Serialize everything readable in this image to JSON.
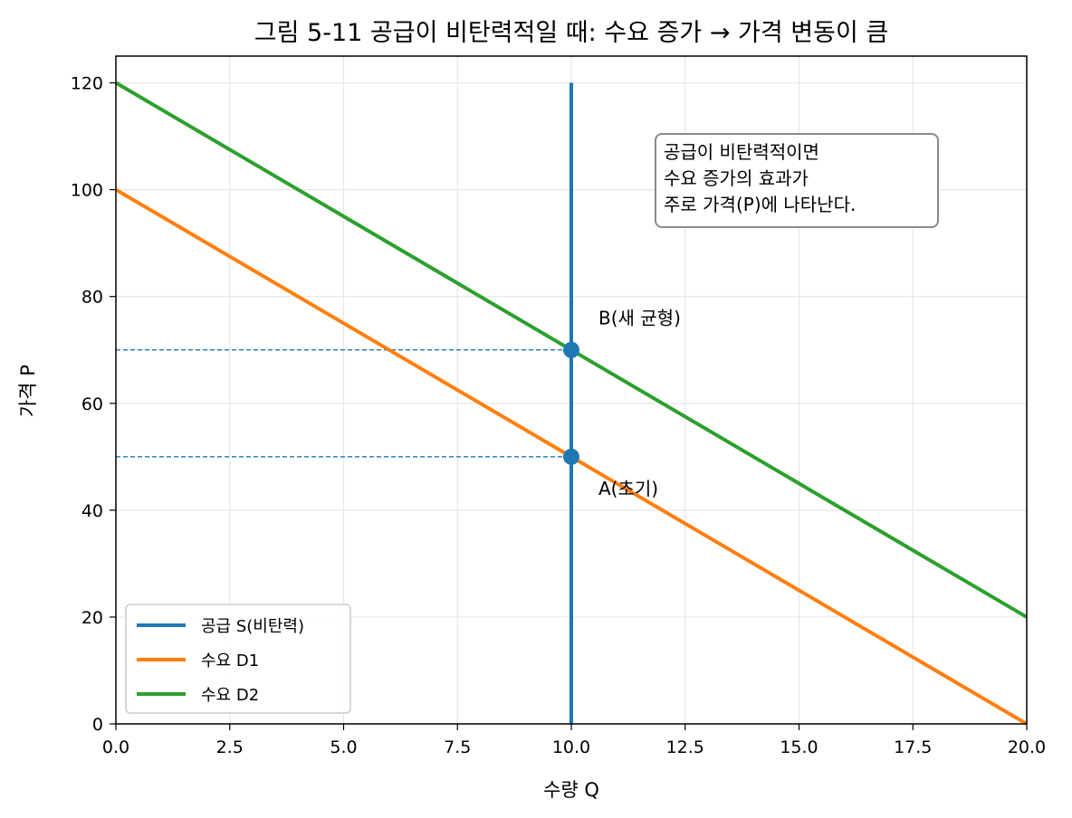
{
  "chart_data": {
    "type": "line",
    "title": "그림 5-11  공급이 비탄력적일 때: 수요 증가 → 가격 변동이 큼",
    "xlabel": "수량 Q",
    "ylabel": "가격 P",
    "xlim": [
      0,
      20
    ],
    "ylim": [
      0,
      125
    ],
    "xticks": [
      0,
      2.5,
      5,
      7.5,
      10,
      12.5,
      15,
      17.5,
      20
    ],
    "xtick_labels": [
      "0.0",
      "2.5",
      "5.0",
      "7.5",
      "10.0",
      "12.5",
      "15.0",
      "17.5",
      "20.0"
    ],
    "yticks": [
      0,
      20,
      40,
      60,
      80,
      100,
      120
    ],
    "ytick_labels": [
      "0",
      "20",
      "40",
      "60",
      "80",
      "100",
      "120"
    ],
    "grid": true,
    "legend_position": "lower-left",
    "series": [
      {
        "name": "공급 S(비탄력)",
        "color": "#1f77b4",
        "x": [
          10,
          10
        ],
        "y": [
          0,
          120
        ]
      },
      {
        "name": "수요 D1",
        "color": "#ff7f0e",
        "x": [
          0,
          20
        ],
        "y": [
          100,
          0
        ]
      },
      {
        "name": "수요 D2",
        "color": "#2ca02c",
        "x": [
          0,
          20
        ],
        "y": [
          120,
          20
        ]
      }
    ],
    "points": [
      {
        "label": "A(초기)",
        "x": 10,
        "y": 50,
        "color": "#1f77b4"
      },
      {
        "label": "B(새 균형)",
        "x": 10,
        "y": 70,
        "color": "#1f77b4"
      }
    ],
    "reference_lines": [
      {
        "x": [
          0,
          10
        ],
        "y": [
          50,
          50
        ],
        "color": "#1f77b4",
        "style": "dashed"
      },
      {
        "x": [
          0,
          10
        ],
        "y": [
          70,
          70
        ],
        "color": "#1f77b4",
        "style": "dashed"
      }
    ],
    "annotation_box": {
      "lines": [
        "공급이 비탄력적이면",
        "수요 증가의 효과가",
        "주로 가격(P)에 나타난다."
      ]
    }
  }
}
